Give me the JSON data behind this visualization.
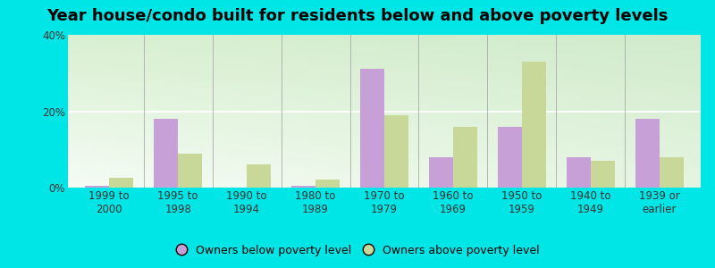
{
  "title": "Year house/condo built for residents below and above poverty levels",
  "categories": [
    "1999 to\n2000",
    "1995 to\n1998",
    "1990 to\n1994",
    "1980 to\n1989",
    "1970 to\n1979",
    "1960 to\n1969",
    "1950 to\n1959",
    "1940 to\n1949",
    "1939 or\nearlier"
  ],
  "below_poverty": [
    0.5,
    18.0,
    0.0,
    0.5,
    31.0,
    8.0,
    16.0,
    8.0,
    18.0
  ],
  "above_poverty": [
    2.5,
    9.0,
    6.0,
    2.0,
    19.0,
    16.0,
    33.0,
    7.0,
    8.0
  ],
  "below_color": "#c8a0d8",
  "above_color": "#c8d898",
  "background_outer": "#00e5e5",
  "ylim": [
    0,
    40
  ],
  "yticks": [
    0,
    20,
    40
  ],
  "ytick_labels": [
    "0%",
    "20%",
    "40%"
  ],
  "bar_width": 0.35,
  "legend_below": "Owners below poverty level",
  "legend_above": "Owners above poverty level",
  "title_fontsize": 13,
  "tick_fontsize": 8.5,
  "legend_fontsize": 9,
  "grad_top_left": "#d8f0d8",
  "grad_top_right": "#c8e8c8",
  "grad_bottom_left": "#f0f8f0",
  "grad_bottom_right": "#e8f8e0"
}
